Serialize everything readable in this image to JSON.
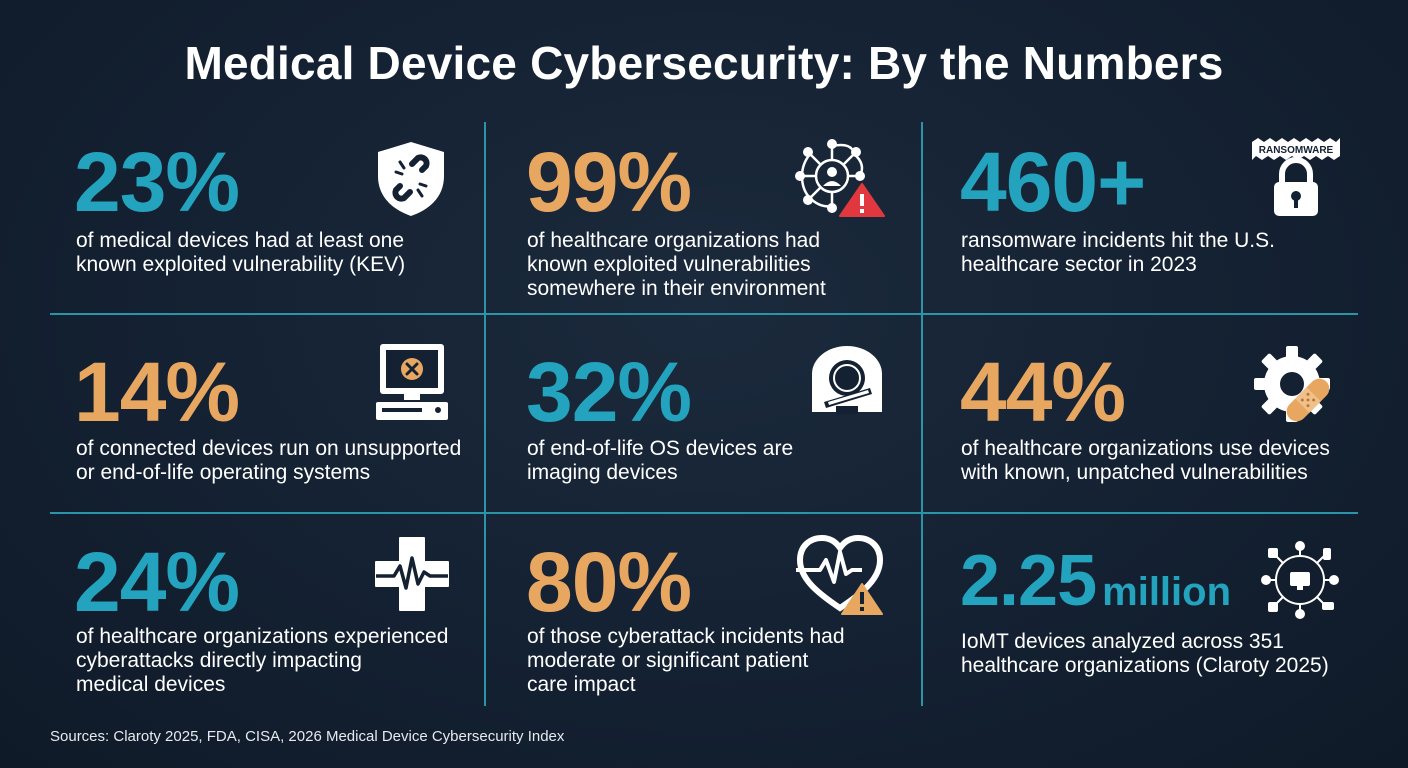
{
  "title": "Medical Device Cybersecurity: By the Numbers",
  "colors": {
    "teal": "#23a3bd",
    "orange": "#e8a761",
    "background": "#142132",
    "grid": "#2a94a8",
    "alert": "#e0383e"
  },
  "stats": [
    {
      "value": "23%",
      "color": "teal",
      "icon": "broken-link-shield-icon",
      "lines": [
        "of medical devices had at least one",
        "known exploited vulnerability (KEV)"
      ]
    },
    {
      "value": "99%",
      "color": "orange",
      "icon": "network-user-alert-icon",
      "lines": [
        "of healthcare organizations had",
        "known exploited vulnerabilities",
        "somewhere in their environment"
      ]
    },
    {
      "value": "460+",
      "color": "teal",
      "icon": "ransomware-lock-icon",
      "icon_label": "RANSOMWARE",
      "lines": [
        "ransomware incidents hit the U.S.",
        "healthcare sector in 2023"
      ]
    },
    {
      "value": "14%",
      "color": "orange",
      "icon": "error-computer-icon",
      "lines": [
        "of connected devices run on unsupported",
        "or end-of-life operating systems"
      ]
    },
    {
      "value": "32%",
      "color": "teal",
      "icon": "imaging-scanner-icon",
      "lines": [
        "of end-of-life OS devices are",
        "imaging devices"
      ]
    },
    {
      "value": "44%",
      "color": "orange",
      "icon": "gear-bandage-icon",
      "lines": [
        "of healthcare organizations use devices",
        "with known, unpatched vulnerabilities"
      ]
    },
    {
      "value": "24%",
      "color": "teal",
      "icon": "medical-cross-heartbeat-icon",
      "lines": [
        "of healthcare organizations experienced",
        "cyberattacks directly impacting",
        "medical devices"
      ]
    },
    {
      "value": "80%",
      "color": "orange",
      "icon": "heart-warning-icon",
      "lines": [
        "of those cyberattack incidents had",
        "moderate or significant patient",
        "care impact"
      ]
    },
    {
      "value": "2.25",
      "unit": "million",
      "color": "teal",
      "icon": "iomt-network-icon",
      "lines": [
        "IoMT devices analyzed across 351",
        "healthcare organizations (Claroty 2025)"
      ]
    }
  ],
  "sources": "Sources: Claroty 2025, FDA, CISA, 2026 Medical Device Cybersecurity Index"
}
